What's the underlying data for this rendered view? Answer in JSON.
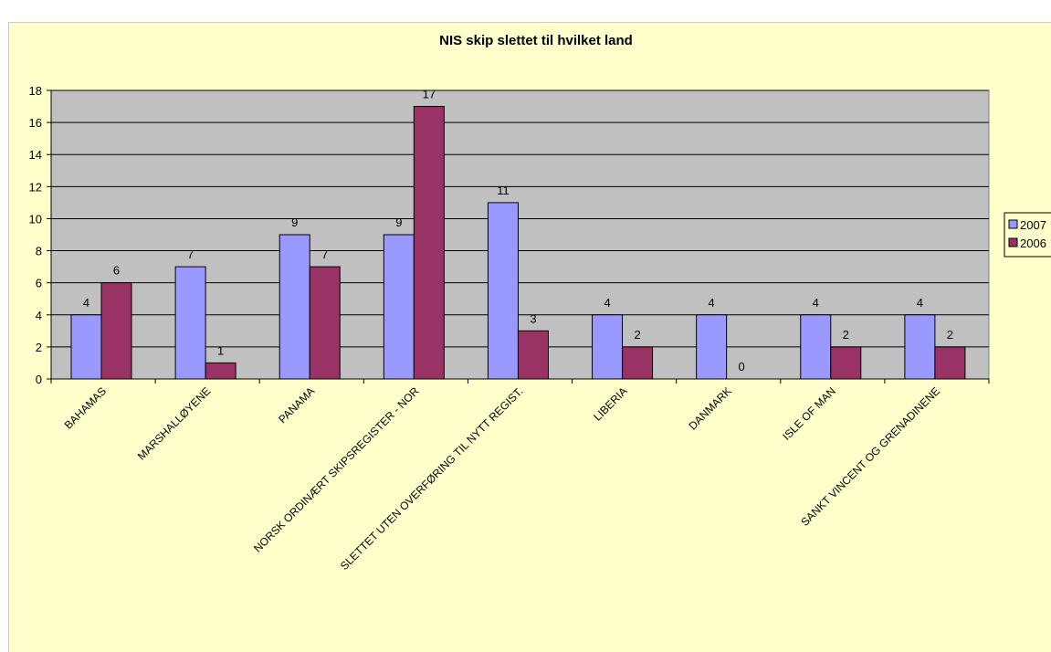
{
  "chart_data": {
    "type": "bar",
    "title": "NIS skip slettet til hvilket land",
    "xlabel": "",
    "ylabel": "",
    "ylim": [
      0,
      18
    ],
    "yticks": [
      0,
      2,
      4,
      6,
      8,
      10,
      12,
      14,
      16,
      18
    ],
    "grid": true,
    "legend_position": "right",
    "categories": [
      "BAHAMAS",
      "MARSHALLØYENE",
      "PANAMA",
      "NORSK ORDINÆRT SKIPSREGISTER - NOR",
      "SLETTET UTEN OVERFØRING TIL NYTT REGIST.",
      "LIBERIA",
      "DANMARK",
      "ISLE OF MAN",
      "SANKT VINCENT OG GRENADINENE"
    ],
    "series": [
      {
        "name": "2007",
        "color": "#9999ff",
        "values": [
          4,
          7,
          9,
          9,
          11,
          4,
          4,
          4,
          4
        ]
      },
      {
        "name": "2006",
        "color": "#993366",
        "values": [
          6,
          1,
          7,
          17,
          3,
          2,
          0,
          2,
          2
        ]
      }
    ],
    "plot_background": "#c0c0c0",
    "chart_background": "#ffffcc"
  }
}
